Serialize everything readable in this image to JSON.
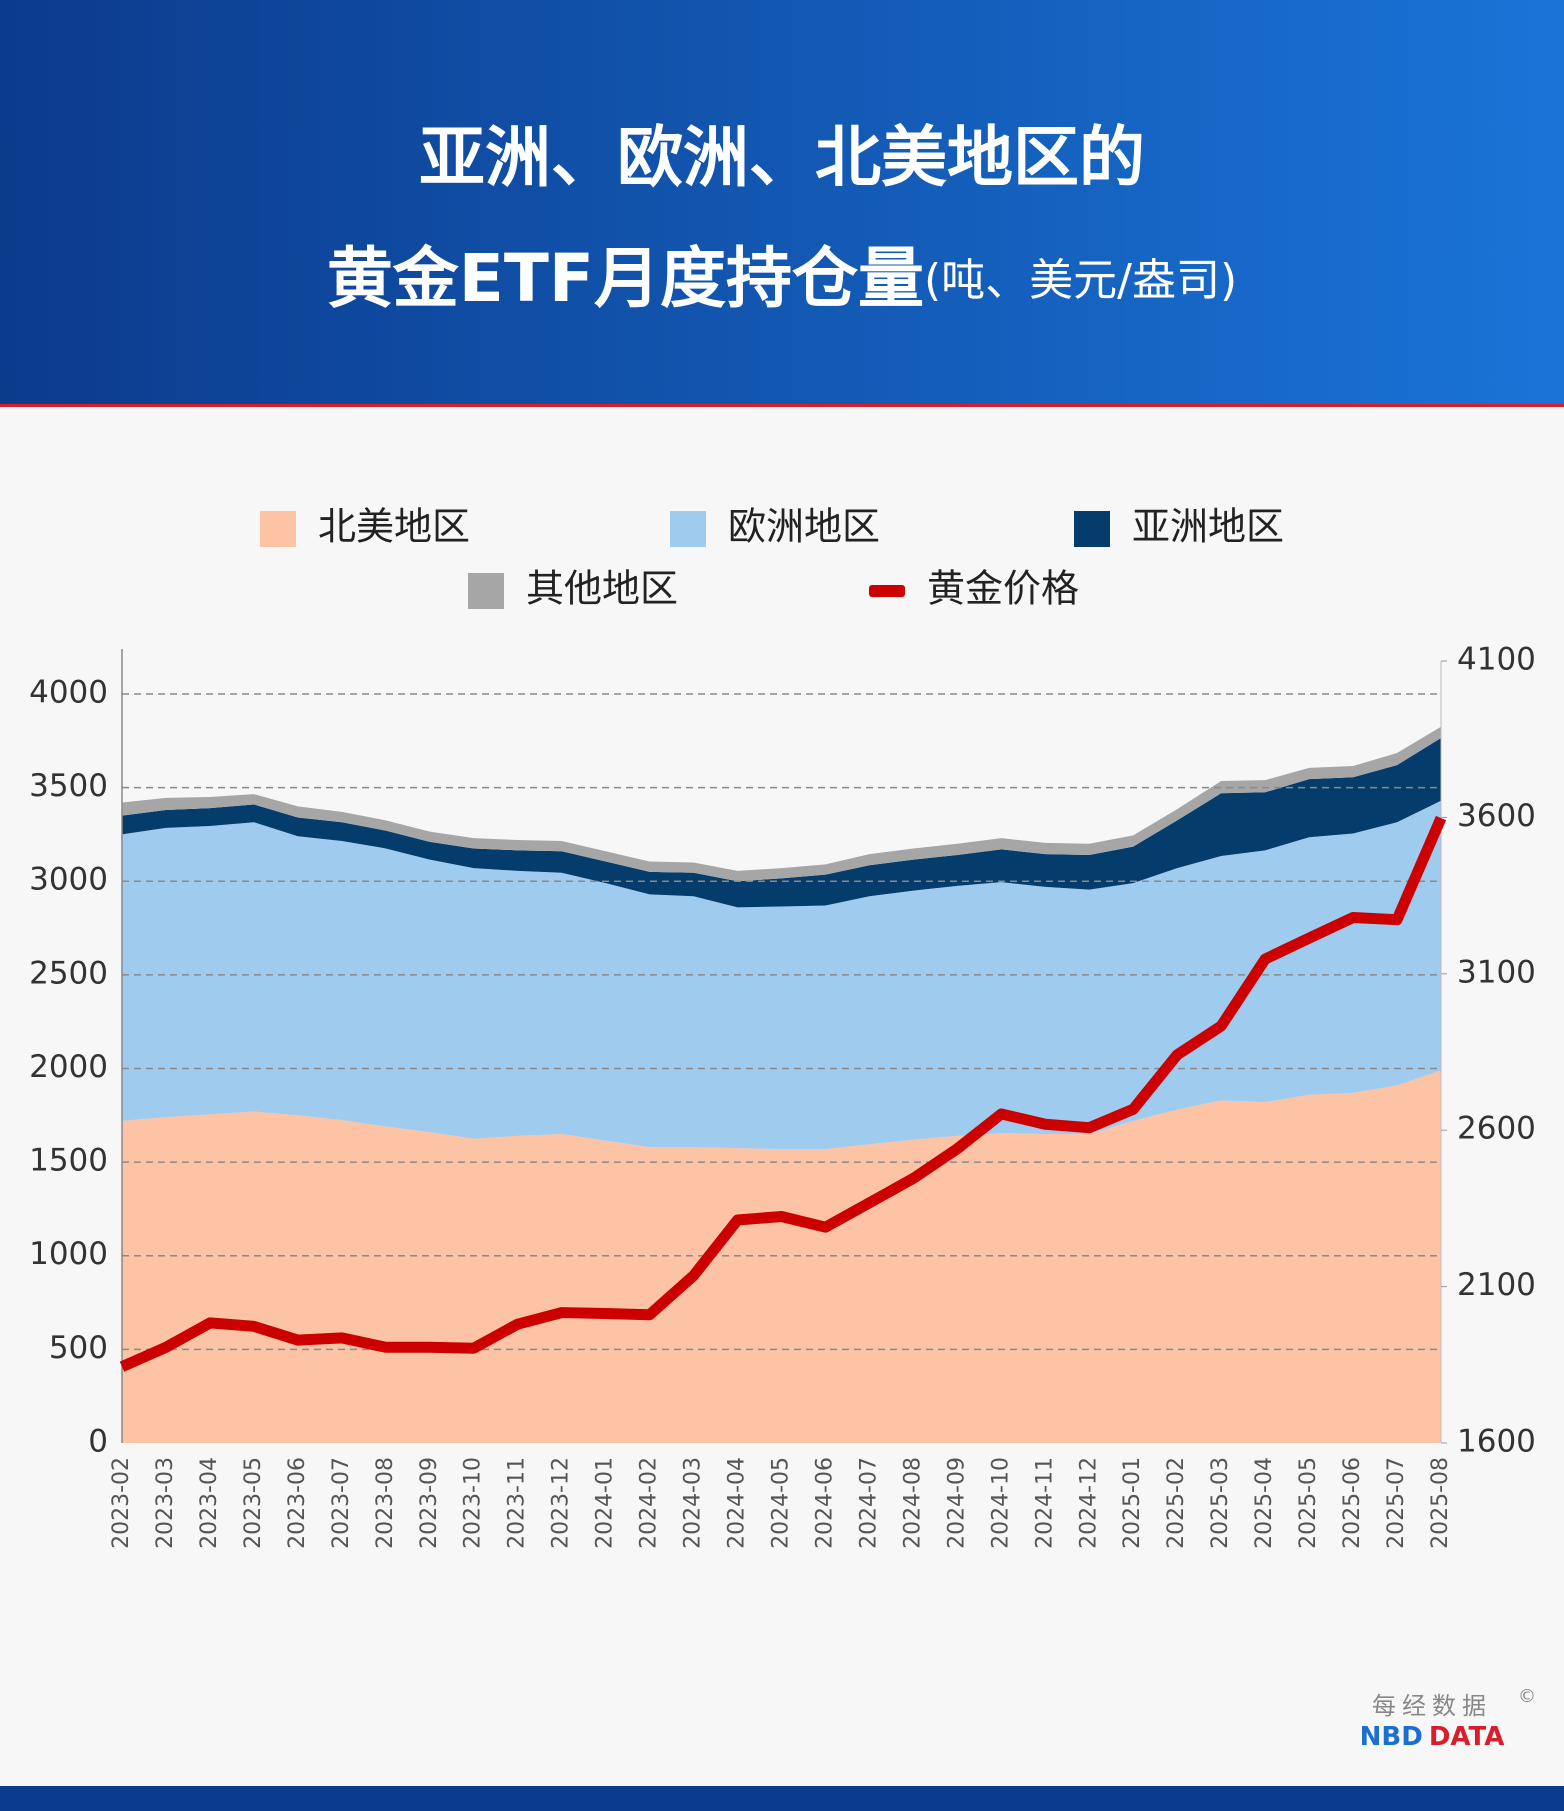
{
  "chart_data": {
    "type": "stacked-area-line",
    "title_line1": "亚洲、欧洲、北美地区的",
    "title_line2": "黄金ETF月度持仓量",
    "title_unit": "(吨、美元/盎司)",
    "categories": [
      "2023-02",
      "2023-03",
      "2023-04",
      "2023-05",
      "2023-06",
      "2023-07",
      "2023-08",
      "2023-09",
      "2023-10",
      "2023-11",
      "2023-12",
      "2024-01",
      "2024-02",
      "2024-03",
      "2024-04",
      "2024-05",
      "2024-06",
      "2024-07",
      "2024-08",
      "2024-09",
      "2024-10",
      "2024-11",
      "2024-12",
      "2025-01",
      "2025-02",
      "2025-03",
      "2025-04",
      "2025-05",
      "2025-06",
      "2025-07",
      "2025-08"
    ],
    "series": [
      {
        "name": "北美地区",
        "color": "#fcc3a5",
        "kind": "area",
        "values": [
          1720,
          1740,
          1755,
          1770,
          1750,
          1725,
          1690,
          1660,
          1625,
          1640,
          1650,
          1615,
          1580,
          1580,
          1575,
          1570,
          1570,
          1595,
          1620,
          1640,
          1655,
          1650,
          1650,
          1720,
          1780,
          1830,
          1820,
          1860,
          1870,
          1910,
          1990
        ]
      },
      {
        "name": "欧洲地区",
        "color": "#9ecbee",
        "kind": "area",
        "values": [
          1530,
          1545,
          1540,
          1545,
          1490,
          1490,
          1485,
          1455,
          1445,
          1415,
          1395,
          1375,
          1350,
          1340,
          1285,
          1295,
          1300,
          1325,
          1330,
          1335,
          1340,
          1320,
          1305,
          1270,
          1290,
          1305,
          1345,
          1375,
          1385,
          1405,
          1440
        ]
      },
      {
        "name": "亚洲地区",
        "color": "#043c6b",
        "kind": "area",
        "values": [
          100,
          95,
          95,
          95,
          100,
          100,
          95,
          95,
          105,
          110,
          115,
          115,
          120,
          125,
          140,
          150,
          165,
          165,
          165,
          165,
          175,
          175,
          185,
          195,
          255,
          335,
          310,
          310,
          300,
          305,
          335
        ]
      },
      {
        "name": "其他地区",
        "color": "#a6a6a6",
        "kind": "area",
        "values": [
          70,
          65,
          60,
          55,
          60,
          55,
          55,
          55,
          55,
          55,
          55,
          55,
          55,
          55,
          55,
          55,
          55,
          60,
          60,
          60,
          60,
          60,
          60,
          60,
          60,
          65,
          65,
          60,
          60,
          65,
          60
        ]
      },
      {
        "name": "黄金价格",
        "color": "#cc0000",
        "kind": "line",
        "axis": "y2",
        "values": [
          1844,
          1906,
          1984,
          1973,
          1929,
          1936,
          1906,
          1906,
          1903,
          1980,
          2017,
          2014,
          2010,
          2135,
          2313,
          2324,
          2290,
          2368,
          2446,
          2541,
          2652,
          2619,
          2608,
          2667,
          2841,
          2933,
          3147,
          3214,
          3280,
          3273,
          3598
        ]
      }
    ],
    "ylim": [
      0,
      4176
    ],
    "yticks": [
      0,
      500,
      1000,
      1500,
      2000,
      2500,
      3000,
      3500,
      4000
    ],
    "y2lim": [
      1600,
      4100
    ],
    "y2ticks": [
      1600,
      2100,
      2600,
      3100,
      3600,
      4100
    ],
    "grid": true,
    "source_cn": "每经数据",
    "source_nbd": "NBD",
    "source_data": "DATA",
    "copyright": "©"
  }
}
